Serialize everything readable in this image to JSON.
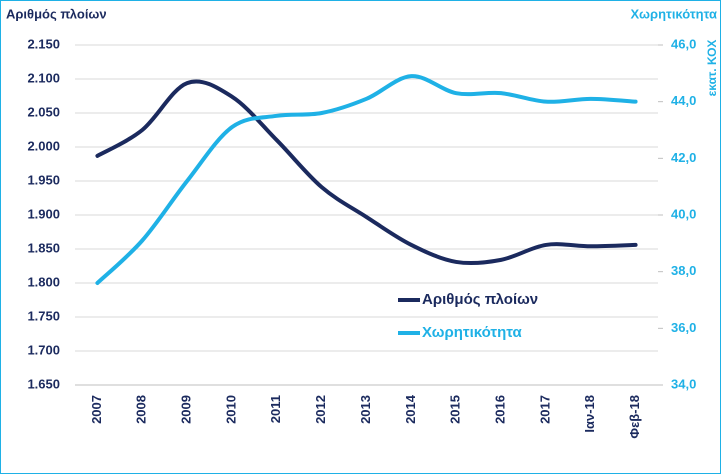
{
  "chart_data": {
    "type": "line",
    "ylabel": "Αριθμός πλοίων",
    "y2label": "Χωρητικότητα",
    "y2unit": "εκατ. ΚΟΧ",
    "categories": [
      "2007",
      "2008",
      "2009",
      "2010",
      "2011",
      "2012",
      "2013",
      "2014",
      "2015",
      "2016",
      "2017",
      "Ιαν-18",
      "Φεβ-18"
    ],
    "series": [
      {
        "name": "Αριθμός πλοίων",
        "color": "#1b2a5e",
        "axis": "y",
        "values": [
          1987,
          2025,
          2094,
          2074,
          2010,
          1941,
          1897,
          1856,
          1831,
          1834,
          1856,
          1854,
          1856
        ]
      },
      {
        "name": "Χωρητικότητα",
        "color": "#1fb1e6",
        "axis": "y2",
        "values": [
          37.6,
          39.1,
          41.2,
          43.1,
          43.5,
          43.6,
          44.1,
          44.9,
          44.3,
          44.3,
          44.0,
          44.1,
          44.0
        ]
      }
    ],
    "ylim": [
      1650,
      2150
    ],
    "yticks": [
      {
        "value": 1650,
        "label": "1.650"
      },
      {
        "value": 1700,
        "label": "1.700"
      },
      {
        "value": 1750,
        "label": "1.750"
      },
      {
        "value": 1800,
        "label": "1.800"
      },
      {
        "value": 1850,
        "label": "1.850"
      },
      {
        "value": 1900,
        "label": "1.900"
      },
      {
        "value": 1950,
        "label": "1.950"
      },
      {
        "value": 2000,
        "label": "2.000"
      },
      {
        "value": 2050,
        "label": "2.050"
      },
      {
        "value": 2100,
        "label": "2.100"
      },
      {
        "value": 2150,
        "label": "2.150"
      }
    ],
    "y2lim": [
      34,
      46
    ],
    "y2ticks": [
      {
        "value": 34,
        "label": "34,0"
      },
      {
        "value": 36,
        "label": "36,0"
      },
      {
        "value": 38,
        "label": "38,0"
      },
      {
        "value": 40,
        "label": "40,0"
      },
      {
        "value": 42,
        "label": "42,0"
      },
      {
        "value": 44,
        "label": "44,0"
      },
      {
        "value": 46,
        "label": "46,0"
      }
    ],
    "grid": true,
    "legend": "right"
  }
}
